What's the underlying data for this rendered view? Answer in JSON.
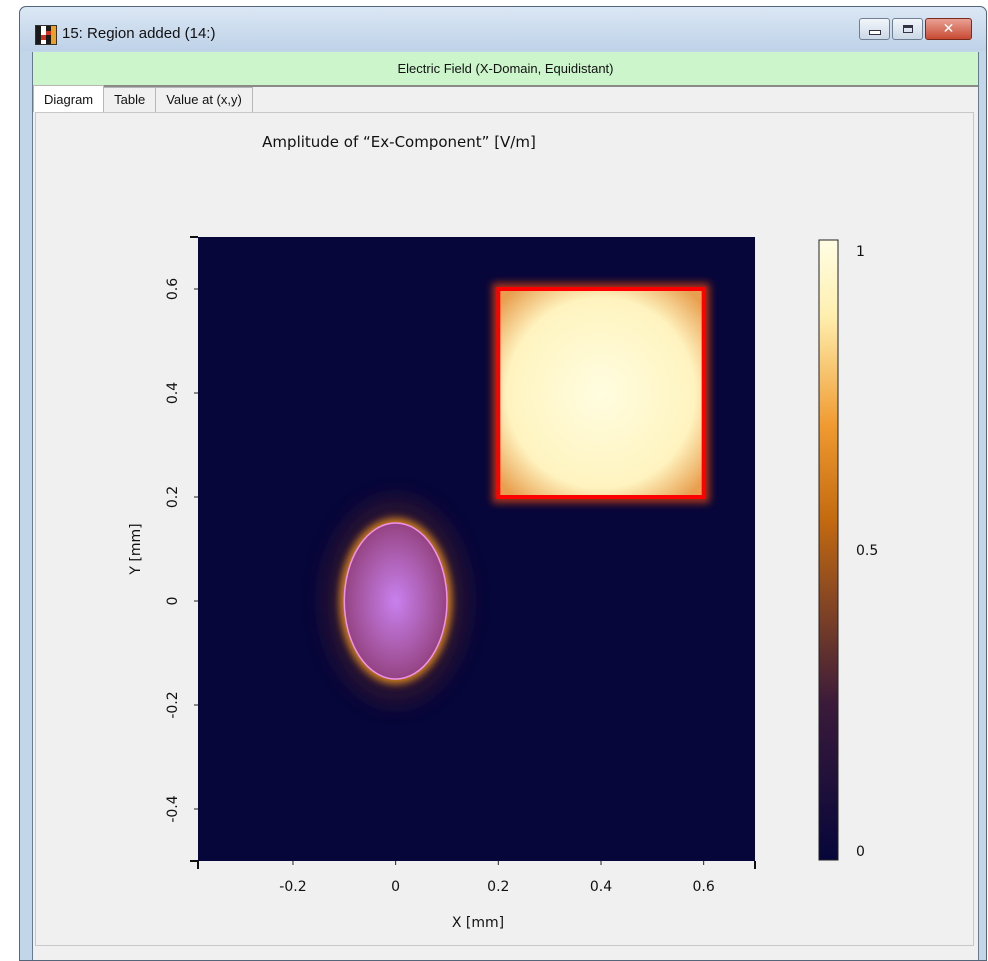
{
  "window": {
    "title": "15: Region added (14:)",
    "icon": "checker-app-icon"
  },
  "subtitle": "Electric Field (X-Domain, Equidistant)",
  "tabs": [
    {
      "label": "Diagram",
      "active": true
    },
    {
      "label": "Table",
      "active": false
    },
    {
      "label": "Value at (x,y)",
      "active": false
    }
  ],
  "chart_data": {
    "type": "heatmap",
    "title": "Amplitude of “Ex-Component”  [V/m]",
    "xlabel": "X [mm]",
    "ylabel": "Y [mm]",
    "xlim": [
      -0.385,
      0.7
    ],
    "ylim": [
      -0.5,
      0.7
    ],
    "x_ticks": [
      "-0.2",
      "0",
      "0.2",
      "0.4",
      "0.6"
    ],
    "y_ticks": [
      "-0.4",
      "-0.2",
      "0",
      "0.2",
      "0.4",
      "0.6"
    ],
    "colorbar": {
      "min_label": "0",
      "mid_label": "0.5",
      "max_label": "1",
      "range": [
        0,
        1
      ]
    },
    "colormap": [
      "#06063a",
      "#3a1a3a",
      "#b05a10",
      "#f08a10",
      "#fff2b0",
      "#fffde0"
    ],
    "regions": [
      {
        "shape": "ellipse",
        "center": [
          0.0,
          0.0
        ],
        "radius_x": 0.1,
        "radius_y": 0.15,
        "value": 0.45,
        "outline": "#f090f0",
        "fill": "#c878e0"
      },
      {
        "shape": "rectangle",
        "x_range": [
          0.2,
          0.6
        ],
        "y_range": [
          0.2,
          0.6
        ],
        "value": 1.0,
        "outline": "#ff0000",
        "fill": "#fffbd0"
      }
    ]
  }
}
